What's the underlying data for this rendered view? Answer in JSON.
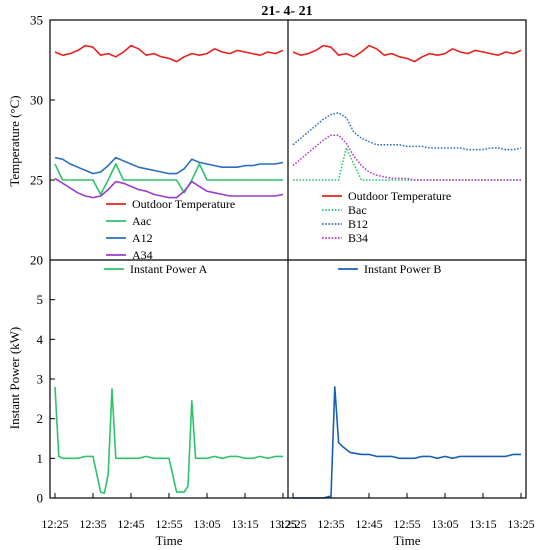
{
  "figure_title": "21- 4- 21",
  "chart_data": [
    {
      "type": "line",
      "panel": "top-left",
      "ylabel": "Temperature (°C)",
      "ylim": [
        20,
        35
      ],
      "yticks": [
        20,
        25,
        30,
        35
      ],
      "x": [
        "12:25",
        "12:27",
        "12:29",
        "12:31",
        "12:33",
        "12:35",
        "12:37",
        "12:39",
        "12:41",
        "12:43",
        "12:45",
        "12:47",
        "12:49",
        "12:51",
        "12:53",
        "12:55",
        "12:57",
        "12:59",
        "13:01",
        "13:03",
        "13:05",
        "13:07",
        "13:09",
        "13:11",
        "13:13",
        "13:15",
        "13:17",
        "13:19",
        "13:21",
        "13:23",
        "13:25"
      ],
      "legend_position": "bottom-left",
      "series": [
        {
          "name": "Outdoor Temperature",
          "color": "#e8211b",
          "dash": "solid",
          "values": [
            33.0,
            32.8,
            32.9,
            33.1,
            33.4,
            33.3,
            32.8,
            32.9,
            32.7,
            33.0,
            33.4,
            33.2,
            32.8,
            32.9,
            32.7,
            32.6,
            32.4,
            32.7,
            32.9,
            32.8,
            32.9,
            33.2,
            33.0,
            32.9,
            33.1,
            33.0,
            32.9,
            32.8,
            33.0,
            32.9,
            33.1
          ]
        },
        {
          "name": "Aac",
          "color": "#2ec36b",
          "dash": "solid",
          "values": [
            26.0,
            25.0,
            25.0,
            25.0,
            25.0,
            25.0,
            24.1,
            25.0,
            26.0,
            25.0,
            25.0,
            25.0,
            25.0,
            25.0,
            25.0,
            25.0,
            25.0,
            24.2,
            25.0,
            26.0,
            25.0,
            25.0,
            25.0,
            25.0,
            25.0,
            25.0,
            25.0,
            25.0,
            25.0,
            25.0,
            25.0
          ]
        },
        {
          "name": "A12",
          "color": "#2a6fbf",
          "dash": "solid",
          "values": [
            26.4,
            26.3,
            26.0,
            25.8,
            25.6,
            25.4,
            25.5,
            25.9,
            26.4,
            26.2,
            26.0,
            25.8,
            25.7,
            25.6,
            25.5,
            25.4,
            25.4,
            25.7,
            26.3,
            26.1,
            26.0,
            25.9,
            25.8,
            25.8,
            25.8,
            25.9,
            25.9,
            26.0,
            26.0,
            26.0,
            26.1
          ]
        },
        {
          "name": "A34",
          "color": "#9b3bc9",
          "dash": "solid",
          "values": [
            25.1,
            24.8,
            24.5,
            24.2,
            24.0,
            23.9,
            24.0,
            24.4,
            24.9,
            24.8,
            24.6,
            24.4,
            24.3,
            24.1,
            24.0,
            23.9,
            23.9,
            24.3,
            24.9,
            24.6,
            24.3,
            24.2,
            24.1,
            24.0,
            24.0,
            24.0,
            24.0,
            24.0,
            24.0,
            24.0,
            24.1
          ]
        }
      ]
    },
    {
      "type": "line",
      "panel": "top-right",
      "ylim": [
        20,
        35
      ],
      "x": [
        "12:25",
        "12:27",
        "12:29",
        "12:31",
        "12:33",
        "12:35",
        "12:37",
        "12:39",
        "12:41",
        "12:43",
        "12:45",
        "12:47",
        "12:49",
        "12:51",
        "12:53",
        "12:55",
        "12:57",
        "12:59",
        "13:01",
        "13:03",
        "13:05",
        "13:07",
        "13:09",
        "13:11",
        "13:13",
        "13:15",
        "13:17",
        "13:19",
        "13:21",
        "13:23",
        "13:25"
      ],
      "legend_position": "bottom-right",
      "series": [
        {
          "name": "Outdoor Temperature",
          "color": "#e8211b",
          "dash": "solid",
          "values": [
            33.0,
            32.8,
            32.9,
            33.1,
            33.4,
            33.3,
            32.8,
            32.9,
            32.7,
            33.0,
            33.4,
            33.2,
            32.8,
            32.9,
            32.7,
            32.6,
            32.4,
            32.7,
            32.9,
            32.8,
            32.9,
            33.2,
            33.0,
            32.9,
            33.1,
            33.0,
            32.9,
            32.8,
            33.0,
            32.9,
            33.1
          ]
        },
        {
          "name": "Bac",
          "color": "#2ec36b",
          "dash": "dotted",
          "values": [
            25.0,
            25.0,
            25.0,
            25.0,
            25.0,
            25.0,
            25.0,
            27.0,
            26.0,
            25.0,
            25.0,
            25.0,
            25.0,
            25.0,
            25.0,
            25.0,
            25.0,
            25.0,
            25.0,
            25.0,
            25.0,
            25.0,
            25.0,
            25.0,
            25.0,
            25.0,
            25.0,
            25.0,
            25.0,
            25.0,
            25.0
          ]
        },
        {
          "name": "B12",
          "color": "#2a6fbf",
          "dash": "dotted",
          "values": [
            27.2,
            27.6,
            28.0,
            28.4,
            28.8,
            29.1,
            29.2,
            28.9,
            28.0,
            27.6,
            27.4,
            27.2,
            27.2,
            27.2,
            27.2,
            27.1,
            27.1,
            27.1,
            27.0,
            27.0,
            27.0,
            27.0,
            27.0,
            26.9,
            26.9,
            26.9,
            27.0,
            27.0,
            26.9,
            26.9,
            27.0
          ]
        },
        {
          "name": "B34",
          "color": "#b535c9",
          "dash": "dotted",
          "values": [
            25.9,
            26.3,
            26.7,
            27.1,
            27.5,
            27.8,
            27.8,
            27.3,
            26.5,
            25.9,
            25.5,
            25.3,
            25.2,
            25.1,
            25.1,
            25.1,
            25.0,
            25.0,
            25.0,
            25.0,
            25.0,
            25.0,
            25.0,
            25.0,
            25.0,
            25.0,
            25.0,
            25.0,
            25.0,
            25.0,
            25.0
          ]
        }
      ]
    },
    {
      "type": "line",
      "panel": "bottom-left",
      "ylabel": "Instant Power (kW)",
      "xlabel": "Time",
      "ylim": [
        0,
        6
      ],
      "yticks": [
        0,
        1,
        2,
        3,
        4,
        5
      ],
      "xticks": [
        "12:25",
        "12:35",
        "12:45",
        "12:55",
        "13:05",
        "13:15",
        "13:25"
      ],
      "x": [
        "12:25",
        "12:26",
        "12:27",
        "12:29",
        "12:31",
        "12:33",
        "12:35",
        "12:36",
        "12:37",
        "12:38",
        "12:39",
        "12:40",
        "12:41",
        "12:43",
        "12:45",
        "12:47",
        "12:49",
        "12:51",
        "12:53",
        "12:55",
        "12:57",
        "12:59",
        "13:00",
        "13:01",
        "13:02",
        "13:03",
        "13:05",
        "13:07",
        "13:09",
        "13:11",
        "13:13",
        "13:15",
        "13:17",
        "13:19",
        "13:21",
        "13:23",
        "13:25"
      ],
      "legend_position": "top",
      "series": [
        {
          "name": "Instant Power A",
          "color": "#2ec36b",
          "dash": "solid",
          "values": [
            2.8,
            1.05,
            1.0,
            1.0,
            1.0,
            1.05,
            1.05,
            0.6,
            0.15,
            0.12,
            0.6,
            2.75,
            1.0,
            1.0,
            1.0,
            1.0,
            1.05,
            1.0,
            1.0,
            1.0,
            0.15,
            0.15,
            0.3,
            2.45,
            1.0,
            1.0,
            1.0,
            1.05,
            1.0,
            1.05,
            1.05,
            1.0,
            1.0,
            1.05,
            1.0,
            1.05,
            1.05
          ]
        }
      ]
    },
    {
      "type": "line",
      "panel": "bottom-right",
      "xlabel": "Time",
      "ylim": [
        0,
        6
      ],
      "xticks": [
        "12:25",
        "12:35",
        "12:45",
        "12:55",
        "13:05",
        "13:15",
        "13:25"
      ],
      "x": [
        "12:25",
        "12:27",
        "12:29",
        "12:31",
        "12:33",
        "12:35",
        "12:36",
        "12:37",
        "12:38",
        "12:40",
        "12:43",
        "12:45",
        "12:47",
        "12:49",
        "12:51",
        "12:53",
        "12:55",
        "12:57",
        "12:59",
        "13:01",
        "13:03",
        "13:05",
        "13:07",
        "13:09",
        "13:11",
        "13:13",
        "13:15",
        "13:17",
        "13:19",
        "13:21",
        "13:23",
        "13:25"
      ],
      "legend_position": "top",
      "series": [
        {
          "name": "Instant Power B",
          "color": "#1a5fb4",
          "dash": "solid",
          "values": [
            0.0,
            0.0,
            0.0,
            0.0,
            0.0,
            0.05,
            2.8,
            1.4,
            1.3,
            1.15,
            1.1,
            1.1,
            1.05,
            1.05,
            1.05,
            1.0,
            1.0,
            1.0,
            1.05,
            1.05,
            1.0,
            1.05,
            1.0,
            1.05,
            1.05,
            1.05,
            1.05,
            1.05,
            1.05,
            1.05,
            1.1,
            1.1
          ]
        }
      ]
    }
  ]
}
